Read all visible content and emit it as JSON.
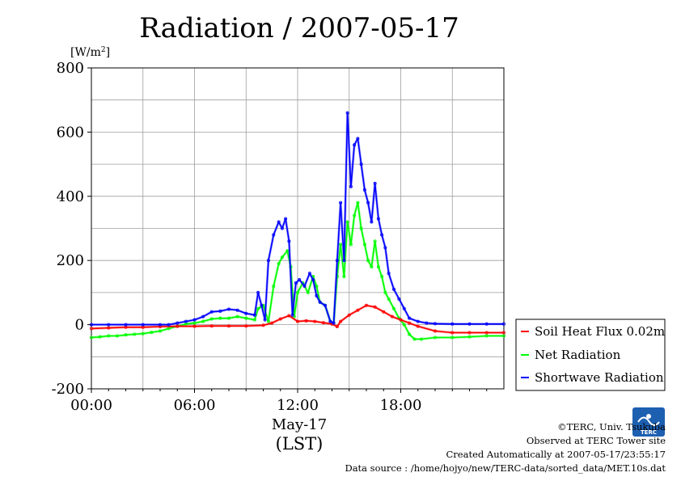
{
  "chart_data": {
    "type": "line",
    "title": "Radiation / 2007-05-17",
    "ylabel": "[W/m",
    "ylabel_sup": "2",
    "ylabel_close": "]",
    "date_label": "May-17",
    "xlabel": "(LST)",
    "ylim": [
      -200,
      800
    ],
    "yticks": [
      "800",
      "600",
      "400",
      "200",
      "0",
      "-200"
    ],
    "ytick_values": [
      800,
      600,
      400,
      200,
      0,
      -200
    ],
    "xlim_hours": [
      0,
      24
    ],
    "xticks": [
      "00:00",
      "06:00",
      "12:00",
      "18:00"
    ],
    "xtick_values": [
      0,
      6,
      12,
      18
    ],
    "grid": true,
    "legend_position": "lower-right-outside",
    "series": [
      {
        "name": "Soil Heat Flux 0.02m",
        "color": "#ff0000",
        "x": [
          0,
          1,
          2,
          3,
          4,
          5,
          6,
          7,
          8,
          9,
          10,
          10.5,
          11,
          11.5,
          12,
          12.5,
          13,
          13.5,
          14,
          14.3,
          14.5,
          15,
          15.5,
          16,
          16.5,
          17,
          17.5,
          18,
          18.5,
          19,
          20,
          21,
          22,
          23,
          24
        ],
        "y": [
          -12,
          -10,
          -8,
          -8,
          -6,
          -5,
          -5,
          -4,
          -4,
          -4,
          -2,
          5,
          18,
          28,
          10,
          12,
          10,
          6,
          2,
          -6,
          10,
          30,
          45,
          60,
          55,
          40,
          25,
          15,
          5,
          -5,
          -20,
          -25,
          -25,
          -25,
          -25
        ]
      },
      {
        "name": "Net Radiation",
        "color": "#00ff00",
        "x": [
          0,
          0.5,
          1,
          1.5,
          2,
          2.5,
          3,
          3.5,
          4,
          4.5,
          5,
          5.5,
          6,
          6.5,
          7,
          7.5,
          8,
          8.5,
          9,
          9.5,
          9.7,
          10,
          10.3,
          10.6,
          10.9,
          11.1,
          11.4,
          11.6,
          11.8,
          12,
          12.3,
          12.6,
          12.9,
          13.1,
          13.3,
          13.6,
          13.9,
          14.1,
          14.3,
          14.5,
          14.7,
          14.9,
          15.1,
          15.3,
          15.5,
          15.7,
          15.9,
          16.1,
          16.3,
          16.5,
          16.7,
          16.9,
          17.1,
          17.3,
          17.6,
          17.9,
          18.2,
          18.5,
          18.8,
          19.2,
          20,
          21,
          22,
          23,
          24
        ],
        "y": [
          -40,
          -38,
          -35,
          -35,
          -32,
          -30,
          -28,
          -24,
          -20,
          -12,
          -5,
          2,
          5,
          10,
          18,
          20,
          20,
          25,
          20,
          15,
          50,
          60,
          10,
          120,
          190,
          210,
          230,
          180,
          25,
          100,
          130,
          100,
          150,
          120,
          70,
          60,
          10,
          5,
          150,
          250,
          150,
          320,
          250,
          340,
          380,
          300,
          250,
          200,
          180,
          260,
          180,
          150,
          100,
          80,
          50,
          20,
          0,
          -30,
          -45,
          -45,
          -40,
          -40,
          -38,
          -35,
          -35
        ]
      },
      {
        "name": "Shortwave Radiation",
        "color": "#0000ff",
        "x": [
          0,
          1,
          2,
          3,
          4,
          4.5,
          5,
          5.5,
          6,
          6.5,
          7,
          7.5,
          8,
          8.5,
          9,
          9.5,
          9.7,
          9.9,
          10.1,
          10.3,
          10.6,
          10.9,
          11.1,
          11.3,
          11.5,
          11.7,
          11.9,
          12.1,
          12.4,
          12.7,
          12.9,
          13.1,
          13.3,
          13.6,
          13.9,
          14.1,
          14.3,
          14.5,
          14.7,
          14.9,
          15.1,
          15.3,
          15.5,
          15.7,
          15.9,
          16.1,
          16.3,
          16.5,
          16.7,
          16.9,
          17.1,
          17.3,
          17.6,
          17.9,
          18.2,
          18.5,
          19,
          19.5,
          20,
          21,
          22,
          23,
          24
        ],
        "y": [
          0,
          0,
          0,
          0,
          0,
          0,
          5,
          10,
          15,
          25,
          40,
          42,
          48,
          45,
          35,
          30,
          100,
          60,
          15,
          200,
          280,
          320,
          300,
          330,
          260,
          30,
          130,
          140,
          120,
          160,
          140,
          90,
          70,
          60,
          10,
          5,
          200,
          380,
          200,
          660,
          430,
          560,
          580,
          500,
          420,
          380,
          320,
          440,
          330,
          280,
          240,
          160,
          110,
          80,
          50,
          20,
          10,
          5,
          3,
          2,
          2,
          2,
          2
        ]
      }
    ]
  },
  "legend": {
    "items": [
      {
        "label": "Soil Heat Flux 0.02m",
        "color": "#ff0000"
      },
      {
        "label": "Net Radiation",
        "color": "#00ff00"
      },
      {
        "label": "Shortwave Radiation",
        "color": "#0000ff"
      }
    ]
  },
  "credits": {
    "logo_text": "TERC",
    "line1": "©TERC, Univ. Tsukuba",
    "line2": "Observed at TERC Tower site",
    "line3": "Created Automatically at 2007-05-17/23:55:17",
    "line4": "Data source : /home/hojyo/new/TERC-data/sorted_data/MET.10s.dat"
  }
}
